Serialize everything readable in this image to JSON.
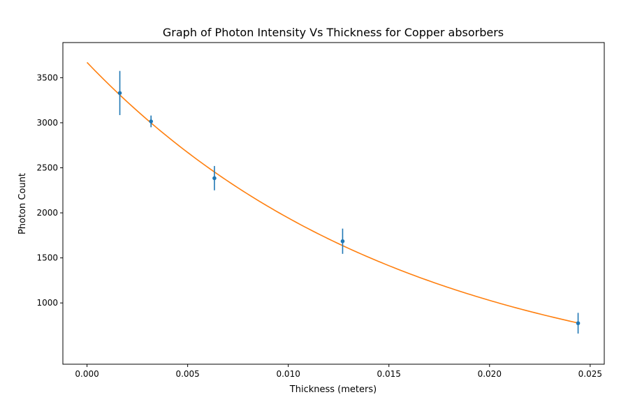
{
  "chart_data": {
    "type": "scatter",
    "title": "Graph of Photon Intensity Vs Thickness for Copper absorbers",
    "xlabel": "Thickness (meters)",
    "ylabel": "Photon Count",
    "xlim": [
      -0.0012,
      0.0257
    ],
    "ylim": [
      320,
      3890
    ],
    "xticks": [
      0.0,
      0.005,
      0.01,
      0.015,
      0.02,
      0.025
    ],
    "xtick_labels": [
      "0.000",
      "0.005",
      "0.010",
      "0.015",
      "0.020",
      "0.025"
    ],
    "yticks": [
      1000,
      1500,
      2000,
      2500,
      3000,
      3500
    ],
    "ytick_labels": [
      "1000",
      "1500",
      "2000",
      "2500",
      "3000",
      "3500"
    ],
    "grid": false,
    "series": [
      {
        "kind": "errorbar",
        "color": "#1f77b4",
        "x": [
          0.00163,
          0.00318,
          0.00633,
          0.0127,
          0.0244
        ],
        "y": [
          3330,
          3015,
          2385,
          1685,
          775
        ],
        "yerr": [
          245,
          65,
          135,
          140,
          115
        ]
      },
      {
        "kind": "fit-curve",
        "color": "#ff7f0e",
        "x_range": [
          0.0,
          0.0244
        ],
        "model": "exponential",
        "amplitude": 3670,
        "decay_constant": 63.6
      }
    ]
  }
}
